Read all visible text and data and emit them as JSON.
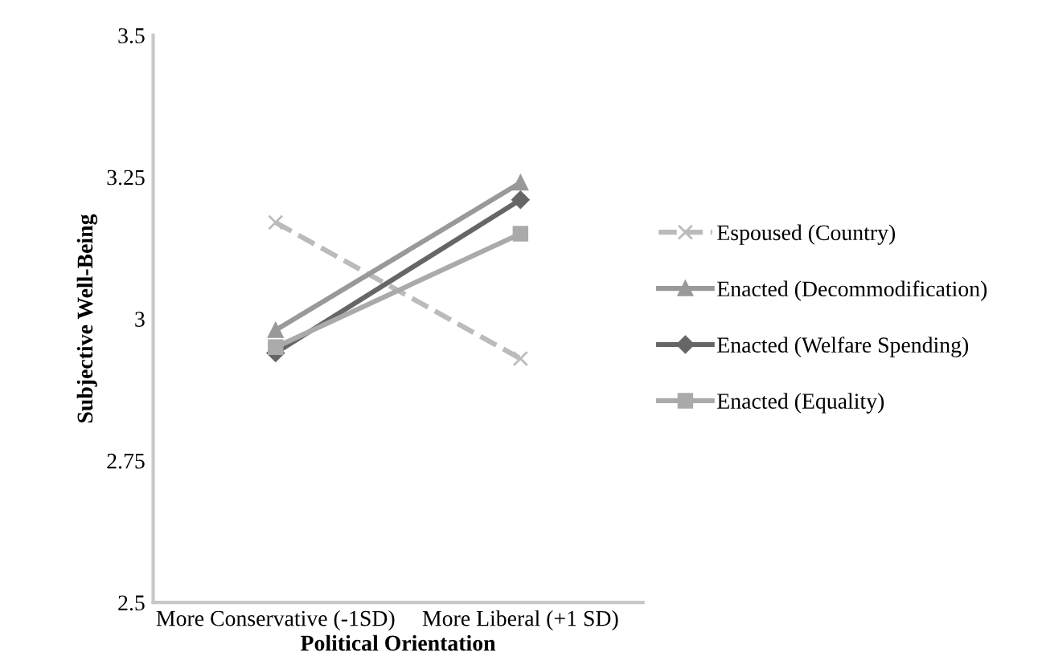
{
  "chart_data": {
    "type": "line",
    "xlabel": "Political Orientation",
    "ylabel": "Subjective Well-Being",
    "categories": [
      "More Conservative (-1SD)",
      "More Liberal (+1 SD)"
    ],
    "series": [
      {
        "name": "Espoused (Country)",
        "color": "#bbbbbb",
        "values": [
          3.17,
          2.93
        ],
        "marker": "cross",
        "line_style": "dashed"
      },
      {
        "name": "Enacted (Decommodification)",
        "color": "#999999",
        "values": [
          2.98,
          3.24
        ],
        "marker": "triangle",
        "line_style": "solid"
      },
      {
        "name": "Enacted (Welfare Spending)",
        "color": "#666666",
        "values": [
          2.94,
          3.21
        ],
        "marker": "diamond",
        "line_style": "solid"
      },
      {
        "name": "Enacted (Equality)",
        "color": "#aaaaaa",
        "values": [
          2.95,
          3.15
        ],
        "marker": "square",
        "line_style": "solid"
      }
    ],
    "ylim": [
      2.5,
      3.5
    ],
    "yticks": [
      2.5,
      2.75,
      3,
      3.25,
      3.5
    ],
    "grid": false,
    "legend": "right"
  }
}
